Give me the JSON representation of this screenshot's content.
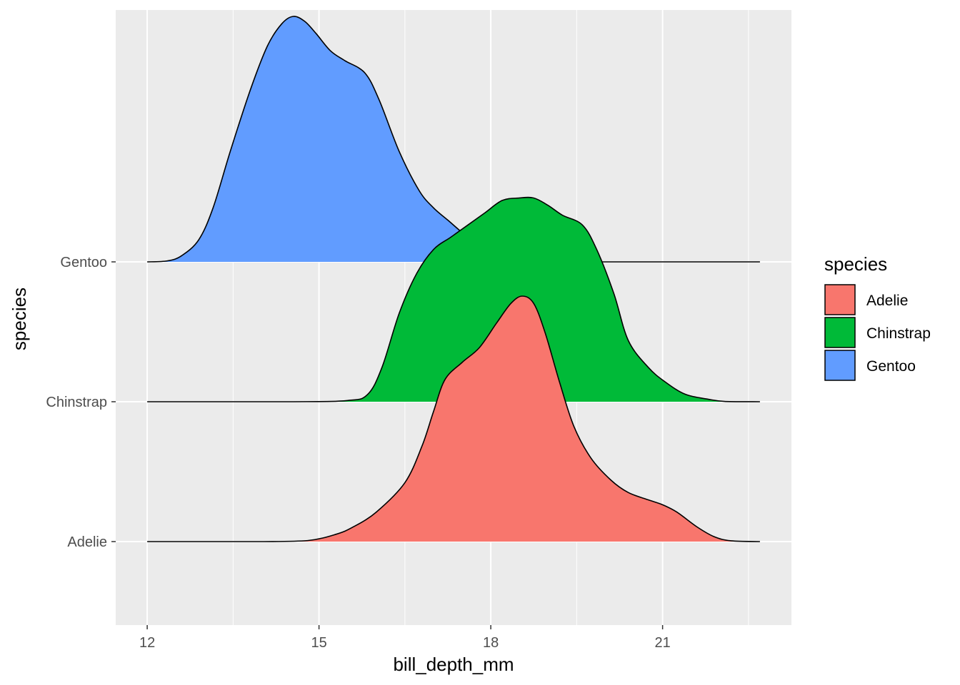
{
  "chart_data": {
    "type": "ridgeline",
    "xlabel": "bill_depth_mm",
    "ylabel": "species",
    "x_ticks": [
      12,
      15,
      18,
      21
    ],
    "xlim": [
      11.45,
      23.25
    ],
    "y_categories": [
      "Adelie",
      "Chinstrap",
      "Gentoo"
    ],
    "grid": true,
    "legend": {
      "title": "species",
      "placement": "right",
      "entries": [
        "Adelie",
        "Chinstrap",
        "Gentoo"
      ]
    },
    "colors": {
      "Adelie": "#F8766D",
      "Chinstrap": "#00BA38",
      "Gentoo": "#619CFF",
      "panel": "#EBEBEB",
      "grid": "#FFFFFF"
    },
    "range": [
      12.0,
      22.7
    ],
    "series": [
      {
        "name": "Adelie",
        "points": [
          [
            12.0,
            0
          ],
          [
            13.0,
            0
          ],
          [
            14.0,
            0
          ],
          [
            14.8,
            0.004
          ],
          [
            15.3,
            0.03
          ],
          [
            15.6,
            0.06
          ],
          [
            16.0,
            0.12
          ],
          [
            16.5,
            0.24
          ],
          [
            16.8,
            0.39
          ],
          [
            17.0,
            0.53
          ],
          [
            17.2,
            0.66
          ],
          [
            17.5,
            0.73
          ],
          [
            17.8,
            0.79
          ],
          [
            18.1,
            0.89
          ],
          [
            18.35,
            0.97
          ],
          [
            18.55,
            1.0
          ],
          [
            18.75,
            0.97
          ],
          [
            18.95,
            0.85
          ],
          [
            19.2,
            0.65
          ],
          [
            19.45,
            0.47
          ],
          [
            19.75,
            0.34
          ],
          [
            20.1,
            0.25
          ],
          [
            20.4,
            0.2
          ],
          [
            20.75,
            0.17
          ],
          [
            21.0,
            0.15
          ],
          [
            21.25,
            0.12
          ],
          [
            21.6,
            0.06
          ],
          [
            21.9,
            0.02
          ],
          [
            22.2,
            0.003
          ],
          [
            22.7,
            0
          ]
        ]
      },
      {
        "name": "Chinstrap",
        "points": [
          [
            12.0,
            0
          ],
          [
            14.5,
            0
          ],
          [
            15.5,
            0.005
          ],
          [
            15.85,
            0.03
          ],
          [
            16.1,
            0.14
          ],
          [
            16.4,
            0.36
          ],
          [
            16.7,
            0.52
          ],
          [
            17.0,
            0.62
          ],
          [
            17.3,
            0.67
          ],
          [
            17.6,
            0.72
          ],
          [
            17.9,
            0.77
          ],
          [
            18.2,
            0.82
          ],
          [
            18.5,
            0.83
          ],
          [
            18.75,
            0.83
          ],
          [
            19.0,
            0.8
          ],
          [
            19.25,
            0.76
          ],
          [
            19.6,
            0.72
          ],
          [
            19.85,
            0.62
          ],
          [
            20.15,
            0.44
          ],
          [
            20.4,
            0.25
          ],
          [
            20.75,
            0.14
          ],
          [
            21.05,
            0.08
          ],
          [
            21.4,
            0.03
          ],
          [
            21.8,
            0.01
          ],
          [
            22.1,
            0.001
          ],
          [
            22.7,
            0
          ]
        ]
      },
      {
        "name": "Gentoo",
        "points": [
          [
            12.0,
            0
          ],
          [
            12.35,
            0.004
          ],
          [
            12.6,
            0.025
          ],
          [
            12.9,
            0.09
          ],
          [
            13.15,
            0.22
          ],
          [
            13.45,
            0.45
          ],
          [
            13.8,
            0.7
          ],
          [
            14.1,
            0.88
          ],
          [
            14.35,
            0.97
          ],
          [
            14.55,
            1.0
          ],
          [
            14.75,
            0.98
          ],
          [
            14.95,
            0.93
          ],
          [
            15.2,
            0.86
          ],
          [
            15.45,
            0.82
          ],
          [
            15.8,
            0.77
          ],
          [
            16.05,
            0.66
          ],
          [
            16.4,
            0.45
          ],
          [
            16.75,
            0.29
          ],
          [
            17.0,
            0.22
          ],
          [
            17.25,
            0.17
          ],
          [
            17.6,
            0.1
          ],
          [
            17.9,
            0.05
          ],
          [
            18.2,
            0.02
          ],
          [
            18.5,
            0.007
          ],
          [
            19.0,
            0.002
          ],
          [
            19.5,
            0
          ],
          [
            22.7,
            0
          ]
        ]
      }
    ]
  }
}
